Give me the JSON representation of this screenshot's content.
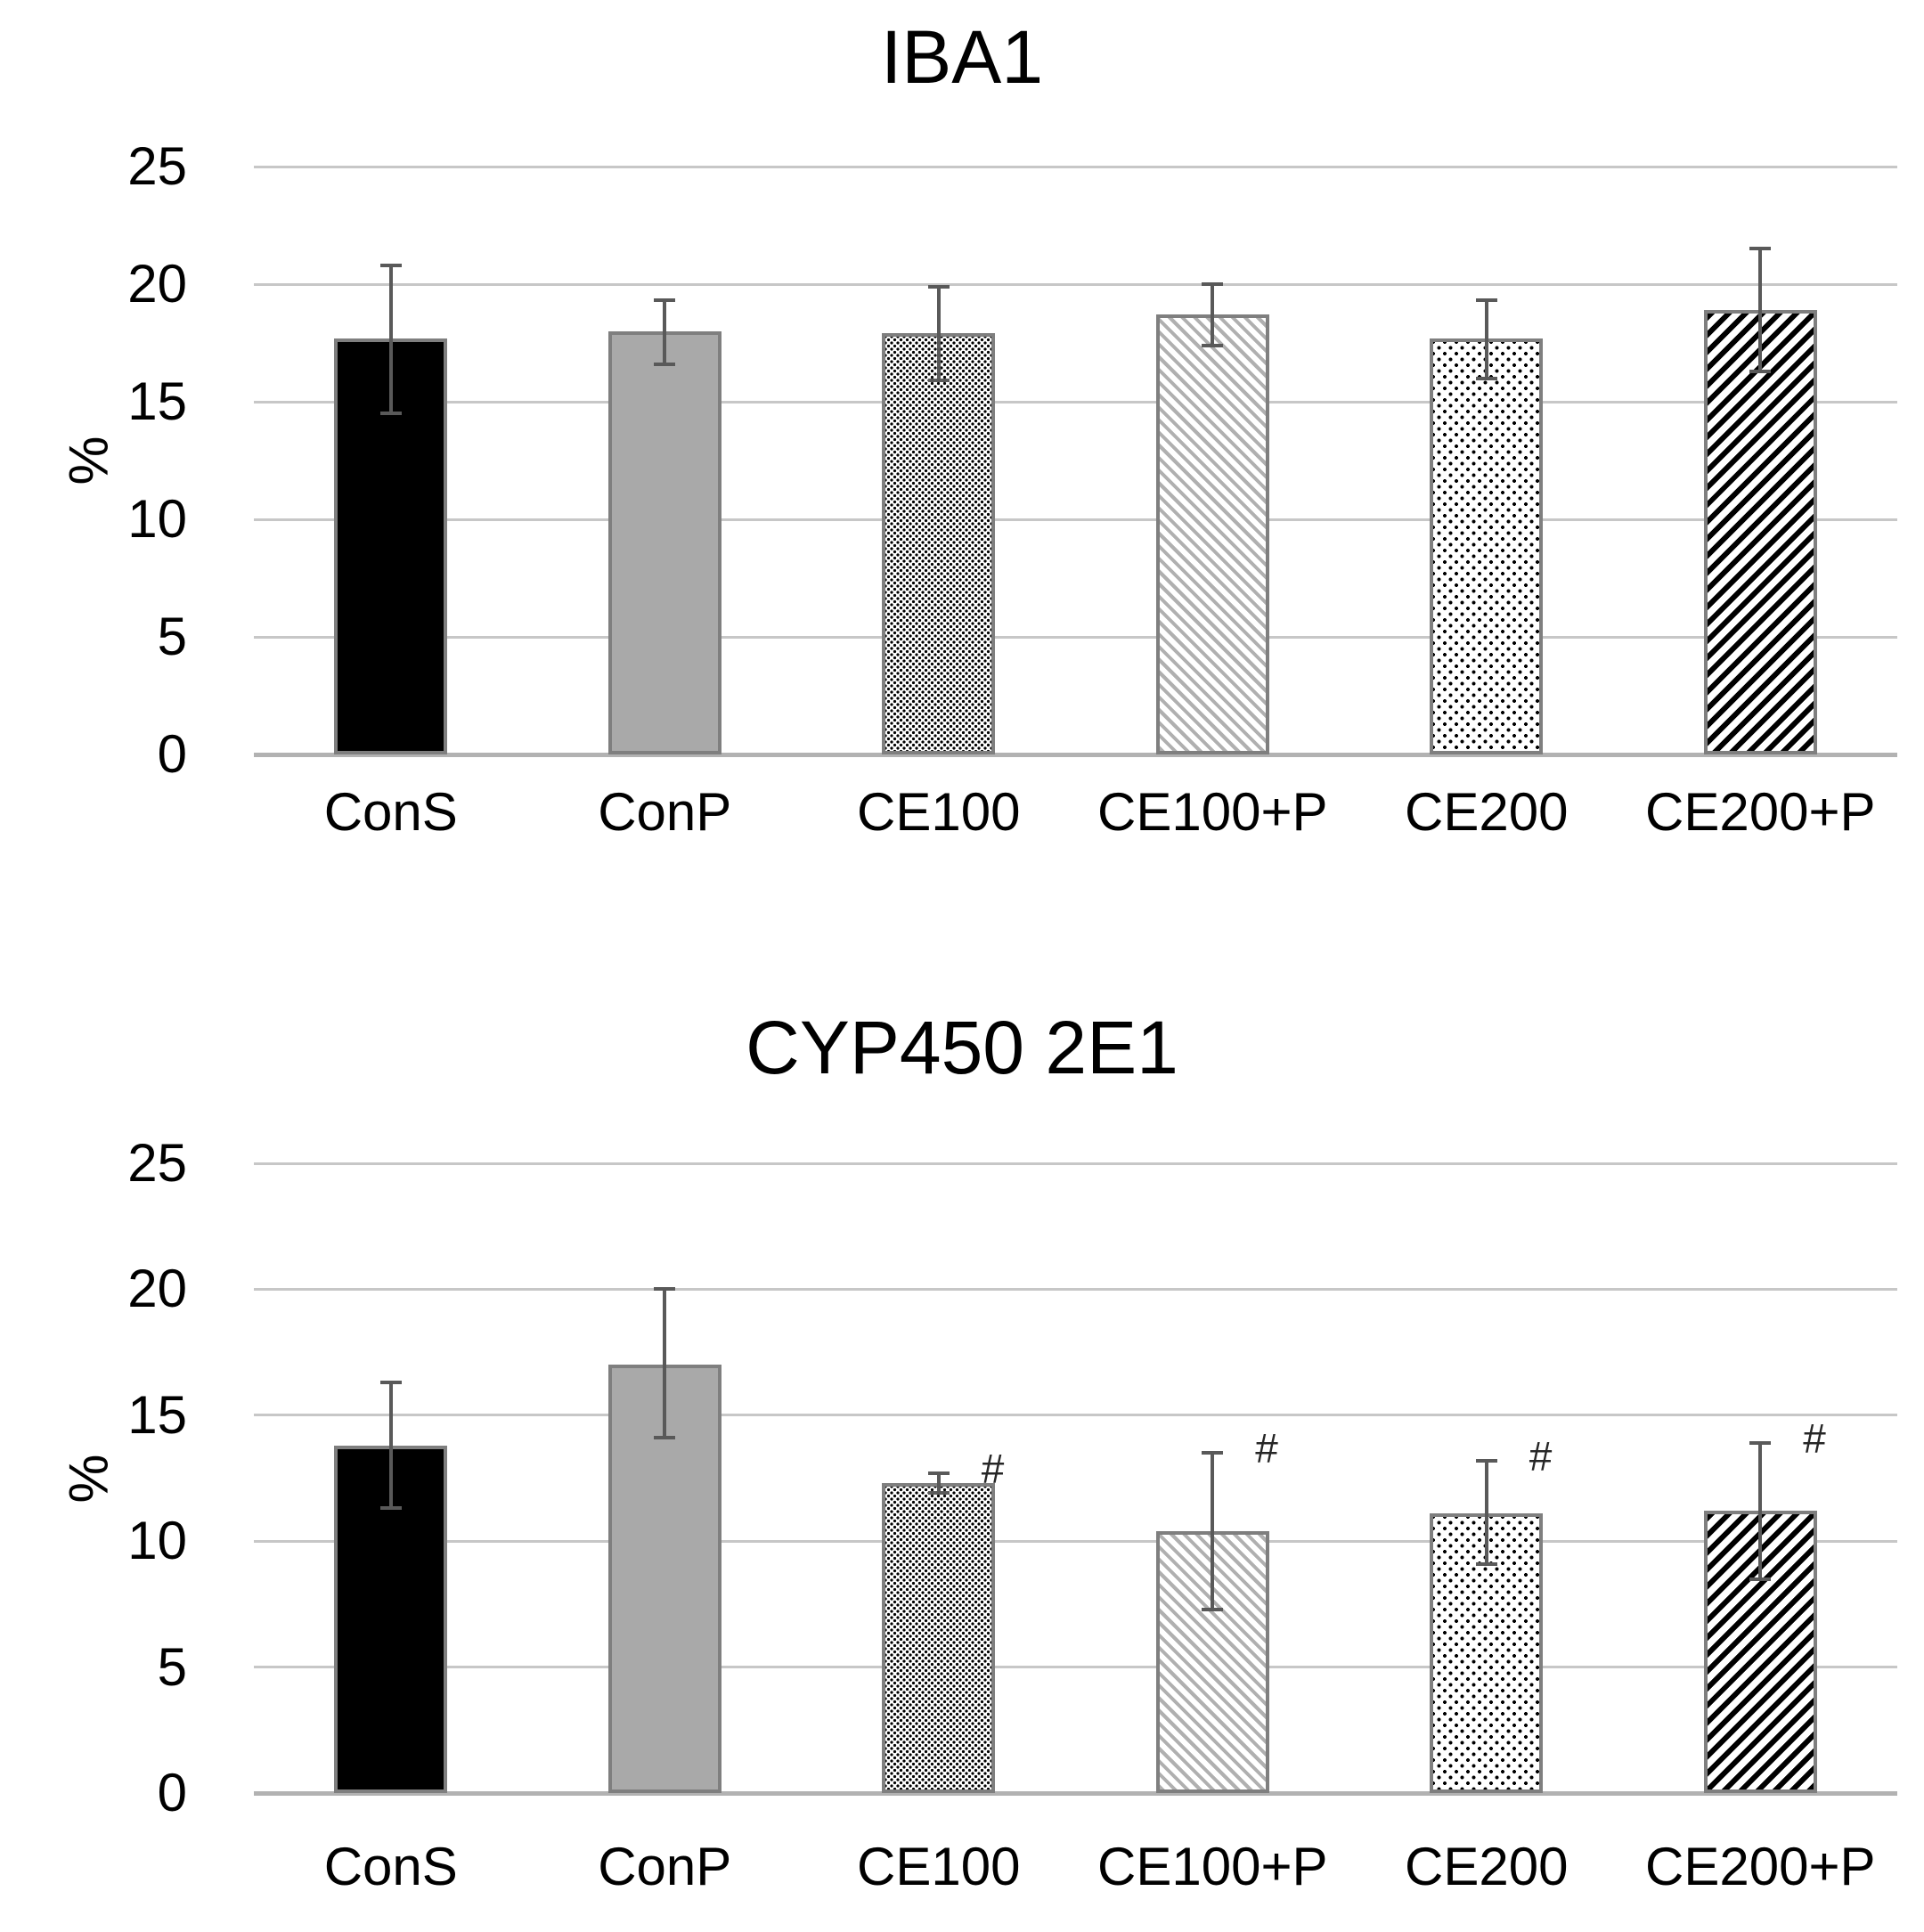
{
  "figure": {
    "background": "#ffffff",
    "significance_symbol": "#"
  },
  "styles": {
    "background": "#ffffff",
    "text_color": "#000000",
    "grid_color": "#c7c7c7",
    "axis_color": "#b2b2b2",
    "error_color": "#595959",
    "bar_outline": "#7f7f7f",
    "bar_fill_black": "#000000",
    "bar_fill_gray": "#a9a9a9",
    "hatch_gray": "#b0b0b0",
    "hatch_black": "#000000",
    "dot_color": "#000000",
    "annotation_color": "#262626"
  },
  "chart_data": [
    {
      "type": "bar",
      "title": "IBA1",
      "xlabel": "",
      "ylabel": "%",
      "ylim": [
        0,
        25
      ],
      "yticks": [
        0,
        5,
        10,
        15,
        20,
        25
      ],
      "grid": true,
      "legend": "none",
      "categories": [
        "ConS",
        "ConP",
        "CE100",
        "CE100+P",
        "CE200",
        "CE200+P"
      ],
      "values": [
        17.7,
        18.0,
        17.9,
        18.7,
        17.7,
        18.9
      ],
      "error_up": [
        3.1,
        1.3,
        2.0,
        1.3,
        1.6,
        2.6
      ],
      "error_down": [
        3.2,
        1.4,
        2.0,
        1.3,
        1.7,
        2.6
      ],
      "annotations": [
        "",
        "",
        "",
        "",
        "",
        ""
      ],
      "bar_styles": [
        "solid-black",
        "solid-gray",
        "dots-dense",
        "hatch-diagonal-gray",
        "dots-sparse",
        "hatch-diagonal-black"
      ]
    },
    {
      "type": "bar",
      "title": "CYP450 2E1",
      "xlabel": "",
      "ylabel": "%",
      "ylim": [
        0,
        25
      ],
      "yticks": [
        0,
        5,
        10,
        15,
        20,
        25
      ],
      "grid": true,
      "legend": "none",
      "categories": [
        "ConS",
        "ConP",
        "CE100",
        "CE100+P",
        "CE200",
        "CE200+P"
      ],
      "values": [
        13.8,
        17.0,
        12.3,
        10.4,
        11.1,
        11.2
      ],
      "error_up": [
        2.5,
        3.0,
        0.4,
        3.1,
        2.1,
        2.7
      ],
      "error_down": [
        2.5,
        2.9,
        0.4,
        3.1,
        2.0,
        2.7
      ],
      "annotations": [
        "",
        "",
        "#",
        "#",
        "#",
        "#"
      ],
      "bar_styles": [
        "solid-black",
        "solid-gray",
        "dots-dense",
        "hatch-diagonal-gray",
        "dots-sparse",
        "hatch-diagonal-black"
      ]
    }
  ]
}
